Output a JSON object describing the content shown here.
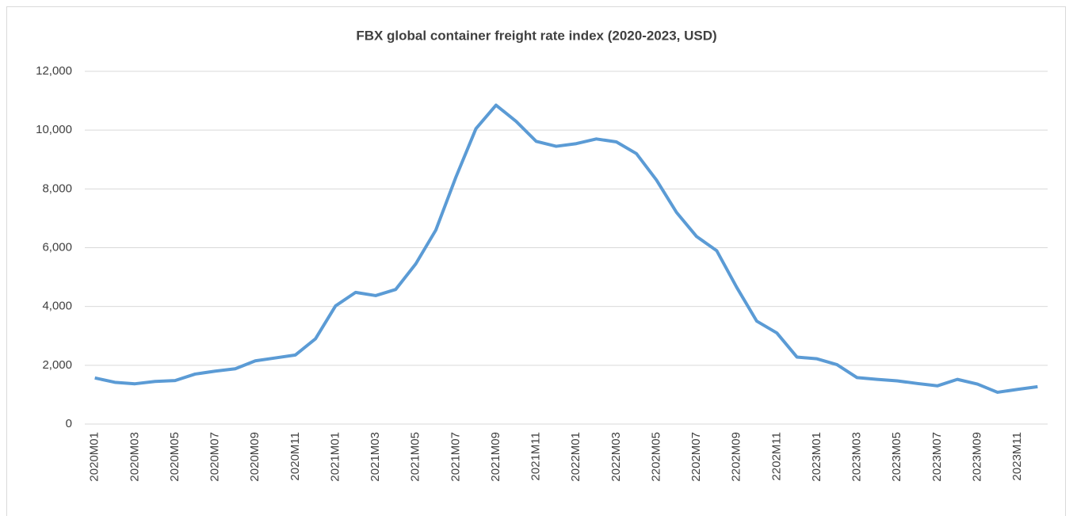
{
  "chart_data": {
    "type": "line",
    "title": "FBX global container freight rate index (2020-2023, USD)",
    "categories": [
      "2020M01",
      null,
      "2020M03",
      null,
      "2020M05",
      null,
      "2020M07",
      null,
      "2020M09",
      null,
      "2020M11",
      null,
      "2021M01",
      null,
      "2021M03",
      null,
      "2021M05",
      null,
      "2021M07",
      null,
      "2021M09",
      null,
      "2021M11",
      null,
      "2022M01",
      null,
      "2022M03",
      null,
      "2202M05",
      null,
      "2202M07",
      null,
      "2202M09",
      null,
      "2202M11",
      null,
      "2023M01",
      null,
      "2023M03",
      null,
      "2023M05",
      null,
      "2023M07",
      null,
      "2023M09",
      null,
      "2023M11",
      null
    ],
    "series": [
      {
        "name": "FBX",
        "color": "#5b9bd5",
        "values": [
          1570,
          1420,
          1370,
          1450,
          1480,
          1700,
          1800,
          1880,
          2150,
          2250,
          2350,
          2900,
          4020,
          4480,
          4370,
          4580,
          5450,
          6600,
          8400,
          10050,
          10850,
          10300,
          9620,
          9450,
          9540,
          9700,
          9600,
          9200,
          8300,
          7200,
          6380,
          5900,
          4650,
          3500,
          3100,
          2280,
          2220,
          2020,
          1580,
          1520,
          1470,
          1380,
          1300,
          1520,
          1360,
          1080,
          1180,
          1270
        ]
      }
    ],
    "ylim": [
      0,
      12000
    ],
    "yticks": [
      0,
      {
        "value": 2000,
        "label": "2,000"
      },
      {
        "value": 4000,
        "label": "4,000"
      },
      {
        "value": 6000,
        "label": "6,000"
      },
      {
        "value": 8000,
        "label": "8,000"
      },
      {
        "value": 10000,
        "label": "10,000"
      },
      {
        "value": 12000,
        "label": "12,000"
      }
    ],
    "grid": true
  }
}
